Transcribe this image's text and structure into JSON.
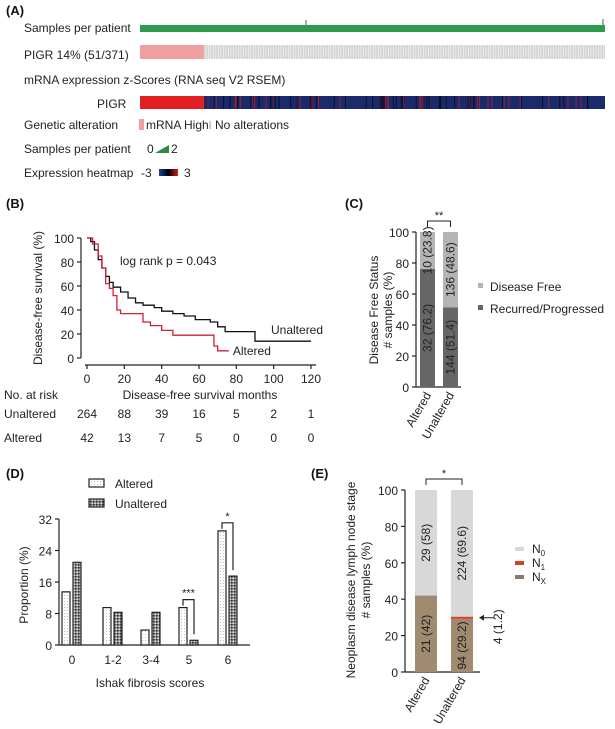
{
  "panel_a": {
    "label": "(A)",
    "samples_row_label": "Samples per patient",
    "gene_row_label": "PIGR  14% (51/371)",
    "altered_count": 51,
    "total_count": 371,
    "mrna_title": "mRNA expression z-Scores (RNA seq V2 RSEM)",
    "heatmap_gene": "PIGR",
    "legend": {
      "genetic_alteration_label": "Genetic alteration",
      "mrna_high": "mRNA High",
      "no_alterations": "No alterations",
      "samples_label": "Samples per patient",
      "samples_min": "0",
      "samples_max": "2",
      "heatmap_label": "Expression heatmap",
      "heatmap_min": "-3",
      "heatmap_max": "3"
    },
    "colors": {
      "samples": "#2e9a4e",
      "mrna_high": "#f0a0a0",
      "no_alt": "#d4d4d4",
      "high": "#e02020",
      "low": "#1a2a6a"
    }
  },
  "chart_data": [
    {
      "panel": "(B)",
      "type": "line",
      "xlabel": "Disease-free survival months",
      "ylabel": "Disease-free survival (%)",
      "xlim": [
        0,
        120
      ],
      "ylim": [
        0,
        100
      ],
      "xticks": [
        "0",
        "20",
        "40",
        "60",
        "80",
        "100",
        "120"
      ],
      "yticks": [
        "0",
        "20",
        "40",
        "60",
        "80",
        "100"
      ],
      "annotation": "log rank p = 0.043",
      "series": [
        {
          "name": "Unaltered",
          "color": "#111111",
          "x": [
            0,
            2,
            4,
            6,
            8,
            10,
            12,
            14,
            18,
            22,
            26,
            30,
            36,
            40,
            46,
            52,
            58,
            66,
            70,
            74,
            90,
            120
          ],
          "y": [
            100,
            97,
            90,
            82,
            75,
            68,
            63,
            59,
            55,
            50,
            46,
            44,
            42,
            39,
            37,
            35,
            32,
            30,
            26,
            22,
            14,
            14
          ]
        },
        {
          "name": "Altered",
          "color": "#cc2233",
          "x": [
            0,
            3,
            6,
            8,
            10,
            12,
            14,
            16,
            18,
            28,
            30,
            34,
            40,
            46,
            66,
            68,
            70,
            76
          ],
          "y": [
            100,
            95,
            85,
            75,
            62,
            58,
            52,
            40,
            37,
            37,
            30,
            27,
            23,
            19,
            19,
            10,
            6,
            6
          ]
        }
      ],
      "risk_table": {
        "title": "No. at risk",
        "rows": [
          {
            "label": "Unaltered",
            "values": [
              "264",
              "88",
              "39",
              "16",
              "5",
              "2",
              "1"
            ]
          },
          {
            "label": "Altered",
            "values": [
              "42",
              "13",
              "7",
              "5",
              "0",
              "0",
              "0"
            ]
          }
        ]
      }
    },
    {
      "panel": "(C)",
      "type": "bar",
      "stacked": true,
      "ylabel": [
        "Disease Free Status",
        "# samples (%)"
      ],
      "ylim": [
        0,
        100
      ],
      "yticks": [
        "0",
        "20",
        "40",
        "60",
        "80",
        "100"
      ],
      "categories": [
        "Altered",
        "Unaltered"
      ],
      "significance": "**",
      "series": [
        {
          "name": "Recurred/Progressed",
          "color": "#666666",
          "values": [
            76.2,
            51.4
          ],
          "labels": [
            "32 (76.2)",
            "144 (51.4)"
          ]
        },
        {
          "name": "Disease Free",
          "color": "#b4b4b4",
          "values": [
            23.8,
            48.6
          ],
          "labels": [
            "10 (23.8)",
            "136 (48.6)"
          ]
        }
      ],
      "legend": [
        "Disease Free",
        "Recurred/Progressed"
      ]
    },
    {
      "panel": "(D)",
      "type": "bar",
      "xlabel": "Ishak fibrosis scores",
      "ylabel": "Proportion (%)",
      "ylim": [
        0,
        32
      ],
      "yticks": [
        "0",
        "8",
        "16",
        "24",
        "32"
      ],
      "categories": [
        "0",
        "1-2",
        "3-4",
        "5",
        "6"
      ],
      "series": [
        {
          "name": "Altered",
          "values": [
            13.5,
            9.5,
            3.8,
            9.5,
            29
          ]
        },
        {
          "name": "Unaltered",
          "values": [
            21,
            8.3,
            8.3,
            1.2,
            17.5
          ]
        }
      ],
      "significance": [
        {
          "category": "5",
          "label": "***"
        },
        {
          "category": "6",
          "label": "*"
        }
      ]
    },
    {
      "panel": "(E)",
      "type": "bar",
      "stacked": true,
      "ylabel": [
        "Neoplasm disease lymph node stage",
        "# samples (%)"
      ],
      "ylim": [
        0,
        100
      ],
      "yticks": [
        "0",
        "20",
        "40",
        "60",
        "80",
        "100"
      ],
      "categories": [
        "Altered",
        "Unaltered"
      ],
      "significance": "*",
      "series": [
        {
          "name": "NX",
          "color": "#a08a70",
          "values": [
            42,
            29.2
          ],
          "labels": [
            "21 (42)",
            "94 (29.2)"
          ]
        },
        {
          "name": "N1",
          "color": "#d84020",
          "values": [
            0,
            1.2
          ],
          "labels": [
            "",
            "4 (1.2)"
          ]
        },
        {
          "name": "N0",
          "color": "#d8d8d8",
          "values": [
            58,
            69.6
          ],
          "labels": [
            "29 (58)",
            "224 (69.6)"
          ]
        }
      ],
      "legend": [
        {
          "main": "N",
          "sub": "0",
          "color": "#d8d8d8"
        },
        {
          "main": "N",
          "sub": "1",
          "color": "#d84020"
        },
        {
          "main": "N",
          "sub": "X",
          "color": "#8a7a6a"
        }
      ]
    }
  ]
}
